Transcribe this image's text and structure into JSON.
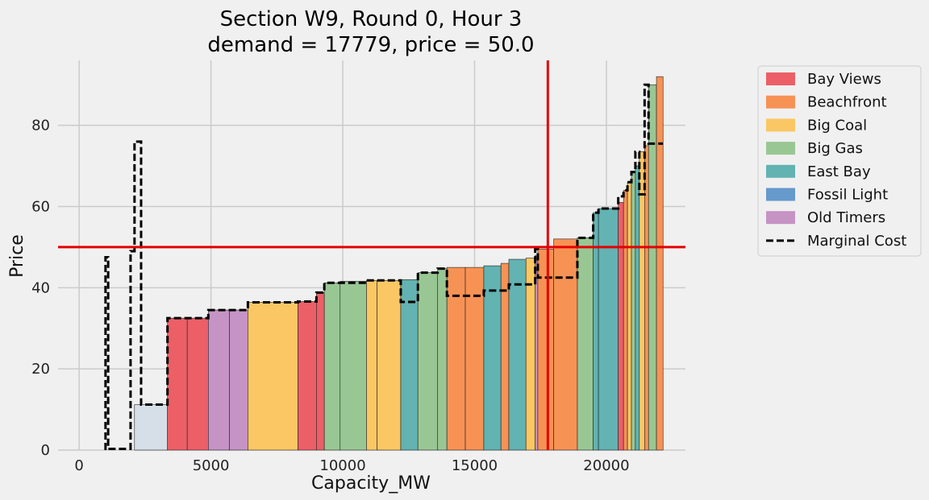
{
  "chart_data": {
    "type": "bar",
    "title": "Section W9, Round 0, Hour 3",
    "subtitle": "demand = 17779, price = 50.0",
    "xlabel": "Capacity_MW",
    "ylabel": "Price",
    "xlim": [
      -800,
      23000
    ],
    "ylim": [
      0,
      96
    ],
    "xticks": [
      0,
      5000,
      10000,
      15000,
      20000
    ],
    "yticks": [
      0,
      20,
      40,
      60,
      80
    ],
    "grid": true,
    "legend_position": "outside-right",
    "demand": 17779,
    "price": 50.0,
    "colors": {
      "Bay Views": "#ec5f67",
      "Beachfront": "#f79255",
      "Big Coal": "#fbc764",
      "Big Gas": "#99c794",
      "East Bay": "#62b3b2",
      "Fossil Light": "#6699cc",
      "Old Timers": "#c594c5",
      "Unassigned": "#d6dfe8"
    },
    "legend": [
      "Bay Views",
      "Beachfront",
      "Big Coal",
      "Big Gas",
      "East Bay",
      "Fossil Light",
      "Old Timers",
      "Marginal Cost"
    ],
    "series": [
      {
        "owner": "Unassigned",
        "x0": 2100,
        "x1": 3350,
        "price": 11.2
      },
      {
        "owner": "Bay Views",
        "x0": 3350,
        "x1": 4100,
        "price": 32.5
      },
      {
        "owner": "Bay Views",
        "x0": 4100,
        "x1": 4900,
        "price": 32.5
      },
      {
        "owner": "Old Timers",
        "x0": 4900,
        "x1": 5700,
        "price": 34.5
      },
      {
        "owner": "Old Timers",
        "x0": 5700,
        "x1": 6400,
        "price": 34.5
      },
      {
        "owner": "Big Coal",
        "x0": 6400,
        "x1": 8300,
        "price": 36.4
      },
      {
        "owner": "Bay Views",
        "x0": 8300,
        "x1": 9000,
        "price": 36.6
      },
      {
        "owner": "Bay Views",
        "x0": 9000,
        "x1": 9300,
        "price": 38.8
      },
      {
        "owner": "Big Gas",
        "x0": 9300,
        "x1": 9900,
        "price": 41.2
      },
      {
        "owner": "Big Gas",
        "x0": 9900,
        "x1": 10900,
        "price": 41.6
      },
      {
        "owner": "Big Coal",
        "x0": 10900,
        "x1": 11300,
        "price": 41.8
      },
      {
        "owner": "Big Coal",
        "x0": 11300,
        "x1": 12200,
        "price": 41.8
      },
      {
        "owner": "East Bay",
        "x0": 12200,
        "x1": 12850,
        "price": 42.0
      },
      {
        "owner": "Big Gas",
        "x0": 12850,
        "x1": 13600,
        "price": 43.7
      },
      {
        "owner": "Big Gas",
        "x0": 13600,
        "x1": 13950,
        "price": 44.7
      },
      {
        "owner": "Beachfront",
        "x0": 13950,
        "x1": 14650,
        "price": 45.0
      },
      {
        "owner": "Beachfront",
        "x0": 14650,
        "x1": 15350,
        "price": 45.0
      },
      {
        "owner": "East Bay",
        "x0": 15350,
        "x1": 16000,
        "price": 45.4
      },
      {
        "owner": "Beachfront",
        "x0": 16000,
        "x1": 16300,
        "price": 46.0
      },
      {
        "owner": "East Bay",
        "x0": 16300,
        "x1": 16950,
        "price": 47.0
      },
      {
        "owner": "Big Coal",
        "x0": 16950,
        "x1": 17300,
        "price": 47.3
      },
      {
        "owner": "Old Timers",
        "x0": 17300,
        "x1": 17400,
        "price": 48.0
      },
      {
        "owner": "Beachfront",
        "x0": 17400,
        "x1": 18000,
        "price": 49.5
      },
      {
        "owner": "Beachfront",
        "x0": 18000,
        "x1": 18900,
        "price": 52.0
      },
      {
        "owner": "Big Gas",
        "x0": 18900,
        "x1": 19500,
        "price": 52.3
      },
      {
        "owner": "East Bay",
        "x0": 19500,
        "x1": 19700,
        "price": 58.5
      },
      {
        "owner": "East Bay",
        "x0": 19700,
        "x1": 20450,
        "price": 59.5
      },
      {
        "owner": "Bay Views",
        "x0": 20450,
        "x1": 20650,
        "price": 61.0
      },
      {
        "owner": "Beachfront",
        "x0": 20650,
        "x1": 20800,
        "price": 64.0
      },
      {
        "owner": "Big Coal",
        "x0": 20800,
        "x1": 20950,
        "price": 66.0
      },
      {
        "owner": "Big Gas",
        "x0": 20950,
        "x1": 21100,
        "price": 68.5
      },
      {
        "owner": "East Bay",
        "x0": 21100,
        "x1": 21250,
        "price": 70.0
      },
      {
        "owner": "Big Coal",
        "x0": 21250,
        "x1": 21450,
        "price": 73.5
      },
      {
        "owner": "Beachfront",
        "x0": 21450,
        "x1": 21600,
        "price": 75.0
      },
      {
        "owner": "Big Gas",
        "x0": 21600,
        "x1": 21900,
        "price": 90.0
      },
      {
        "owner": "Beachfront",
        "x0": 21900,
        "x1": 22150,
        "price": 92.0
      }
    ],
    "marginal_cost": {
      "x": [
        1000,
        1000,
        1100,
        1100,
        1950,
        1950,
        2100,
        2100,
        2350,
        2350,
        3350,
        3350,
        4900,
        4900,
        6400,
        6400,
        8300,
        8300,
        9000,
        9000,
        9300,
        9300,
        10900,
        10900,
        12200,
        12200,
        12850,
        12850,
        13600,
        13600,
        13950,
        13950,
        15350,
        15350,
        16300,
        16300,
        17300,
        17300,
        17400,
        17400,
        18900,
        18900,
        19500,
        19500,
        19700,
        19700,
        20450,
        20450,
        20650,
        20650,
        20800,
        20800,
        20950,
        20950,
        21100,
        21100,
        21250,
        21250,
        21450,
        21450,
        21600,
        21600,
        21900,
        21900,
        22150
      ],
      "y": [
        0,
        47.5,
        47.5,
        0.3,
        0.3,
        49.0,
        49.0,
        76.0,
        76.0,
        11.2,
        11.2,
        32.5,
        32.5,
        34.5,
        34.5,
        36.4,
        36.4,
        36.6,
        36.6,
        38.8,
        38.8,
        41.2,
        41.2,
        41.8,
        41.8,
        36.5,
        36.5,
        43.7,
        43.7,
        44.7,
        44.7,
        38.0,
        38.0,
        39.3,
        39.3,
        40.8,
        40.8,
        49.5,
        49.5,
        42.5,
        42.5,
        52.3,
        52.3,
        58.5,
        58.5,
        59.5,
        59.5,
        62.5,
        62.5,
        64.0,
        64.0,
        66.0,
        66.0,
        68.5,
        68.5,
        73.5,
        73.5,
        63.0,
        63.0,
        90.0,
        90.0,
        75.5,
        75.5,
        75.5,
        75.5
      ]
    }
  }
}
